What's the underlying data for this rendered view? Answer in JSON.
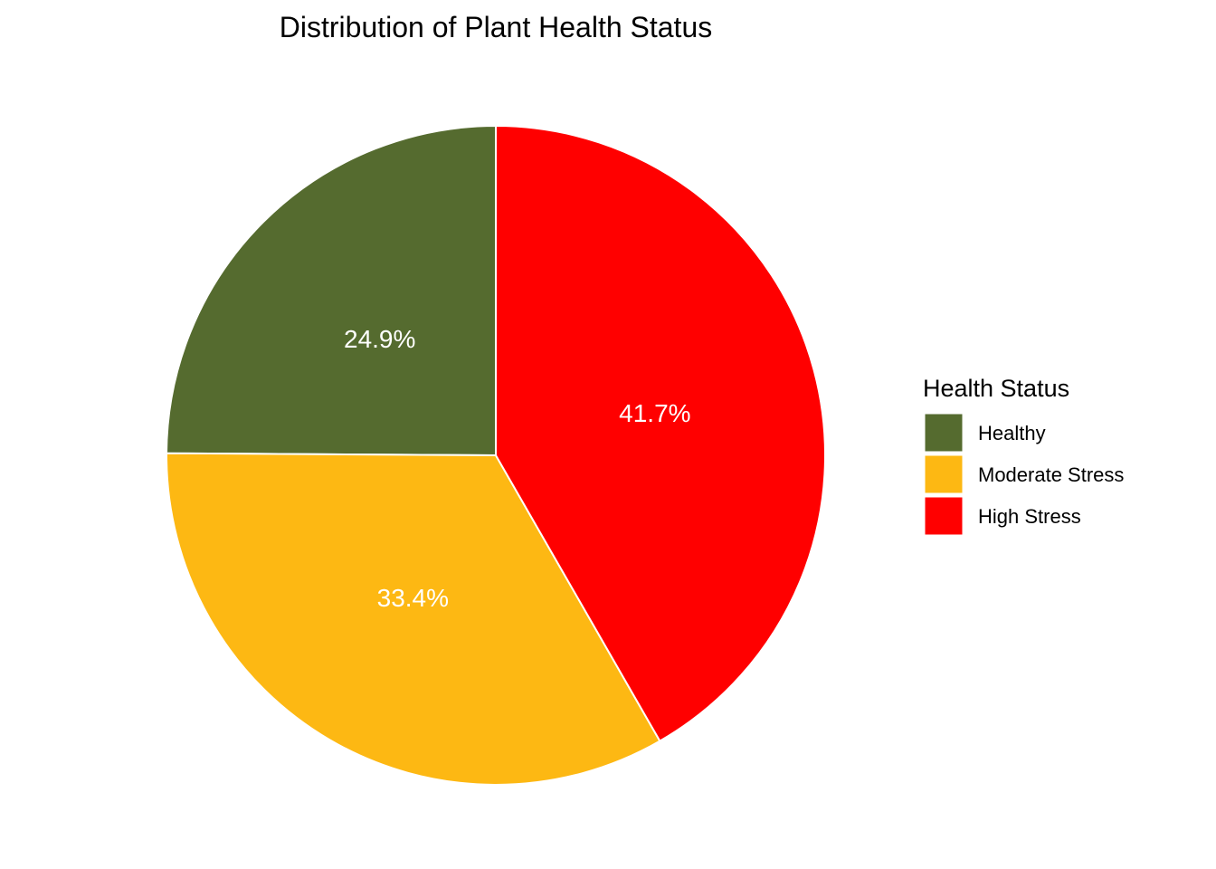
{
  "chart_data": {
    "type": "pie",
    "title": "Distribution of Plant Health Status",
    "legend_title": "Health Status",
    "legend_position": "right",
    "categories": [
      "Healthy",
      "Moderate Stress",
      "High Stress"
    ],
    "values": [
      24.9,
      33.4,
      41.7
    ],
    "labels": [
      "24.9%",
      "33.4%",
      "41.7%"
    ],
    "colors": [
      "#556B2F",
      "#FDB813",
      "#FF0000"
    ],
    "start": "12 o'clock",
    "direction": "counter-clockwise from Healthy; High Stress clockwise from top"
  }
}
